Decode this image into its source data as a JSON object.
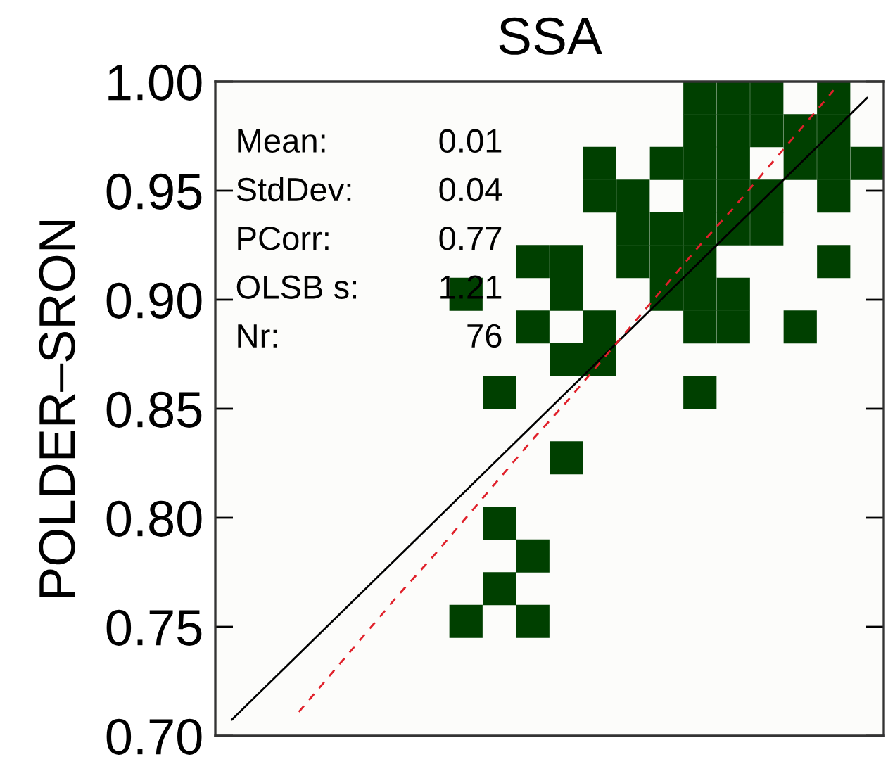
{
  "chart_data": {
    "type": "scatter",
    "title": "SSA",
    "ylabel": "POLDER–SRON",
    "categories": [
      null,
      null,
      null,
      null,
      null,
      null,
      null,
      null,
      null,
      null,
      null,
      null,
      null,
      null,
      null,
      null,
      null,
      null,
      null,
      null
    ],
    "ylim": [
      0.7,
      1.0
    ],
    "yticks": [
      {
        "value": 0.7,
        "label": "0.70"
      },
      {
        "value": 0.75,
        "label": "0.75"
      },
      {
        "value": 0.8,
        "label": "0.80"
      },
      {
        "value": 0.85,
        "label": "0.85"
      },
      {
        "value": 0.9,
        "label": "0.90"
      },
      {
        "value": 0.95,
        "label": "0.95"
      },
      {
        "value": 1.0,
        "label": "1.00"
      }
    ],
    "tick_labels": "y",
    "grid": false,
    "legend": false,
    "marker": "square",
    "annotations": [
      "Mean: 0.01",
      "StdDev: 0.04",
      "PCorr: 0.77",
      "OLSB s: 1.21",
      "Nr: 76"
    ],
    "series": [
      {
        "color": "#004000",
        "values": [
          null,
          null,
          null,
          null,
          null,
          null,
          null,
          null,
          null,
          null,
          null,
          null,
          null,
          null,
          0.9925,
          0.9925,
          0.9925,
          null,
          0.9925,
          null
        ]
      },
      {
        "color": "#004000",
        "values": [
          null,
          null,
          null,
          null,
          null,
          null,
          null,
          null,
          null,
          null,
          null,
          null,
          null,
          null,
          0.9775,
          0.9775,
          0.9775,
          0.9775,
          0.9775,
          null
        ]
      },
      {
        "color": "#004000",
        "values": [
          null,
          null,
          null,
          null,
          null,
          null,
          null,
          null,
          null,
          null,
          null,
          0.9625,
          null,
          0.9625,
          0.9625,
          0.9625,
          null,
          0.9625,
          0.9625,
          0.9625
        ]
      },
      {
        "color": "#004000",
        "values": [
          null,
          null,
          null,
          null,
          null,
          null,
          null,
          null,
          null,
          null,
          null,
          0.9475,
          0.9475,
          null,
          0.9475,
          0.9475,
          0.9475,
          null,
          0.9475,
          null
        ]
      },
      {
        "color": "#004000",
        "values": [
          null,
          null,
          null,
          null,
          null,
          null,
          null,
          null,
          null,
          null,
          null,
          null,
          0.9325,
          0.9325,
          0.9325,
          0.9325,
          0.9325,
          null,
          null,
          null
        ]
      },
      {
        "color": "#004000",
        "values": [
          null,
          null,
          null,
          null,
          null,
          null,
          null,
          null,
          null,
          0.9175,
          0.9175,
          null,
          0.9175,
          0.9175,
          0.9175,
          null,
          null,
          null,
          0.9175,
          null
        ]
      },
      {
        "color": "#004000",
        "values": [
          null,
          null,
          null,
          null,
          null,
          null,
          null,
          0.9025,
          null,
          null,
          0.9025,
          null,
          null,
          0.9025,
          0.9025,
          0.9025,
          null,
          null,
          null,
          null
        ]
      },
      {
        "color": "#004000",
        "values": [
          null,
          null,
          null,
          null,
          null,
          null,
          null,
          null,
          null,
          0.8875,
          null,
          0.8875,
          null,
          null,
          0.8875,
          0.8875,
          null,
          0.8875,
          null,
          null
        ]
      },
      {
        "color": "#004000",
        "values": [
          null,
          null,
          null,
          null,
          null,
          null,
          null,
          null,
          null,
          null,
          0.8725,
          0.8725,
          null,
          null,
          null,
          null,
          null,
          null,
          null,
          null
        ]
      },
      {
        "color": "#004000",
        "values": [
          null,
          null,
          null,
          null,
          null,
          null,
          null,
          null,
          0.8575,
          null,
          null,
          null,
          null,
          null,
          0.8575,
          null,
          null,
          null,
          null,
          null
        ]
      },
      {
        "color": "#004000",
        "values": [
          null,
          null,
          null,
          null,
          null,
          null,
          null,
          null,
          null,
          null,
          0.8275,
          null,
          null,
          null,
          null,
          null,
          null,
          null,
          null,
          null
        ]
      },
      {
        "color": "#004000",
        "values": [
          null,
          null,
          null,
          null,
          null,
          null,
          null,
          null,
          0.7975,
          null,
          null,
          null,
          null,
          null,
          null,
          null,
          null,
          null,
          null,
          null
        ]
      },
      {
        "color": "#004000",
        "values": [
          null,
          null,
          null,
          null,
          null,
          null,
          null,
          null,
          null,
          0.7825,
          null,
          null,
          null,
          null,
          null,
          null,
          null,
          null,
          null,
          null
        ]
      },
      {
        "color": "#004000",
        "values": [
          null,
          null,
          null,
          null,
          null,
          null,
          null,
          null,
          0.7675,
          null,
          null,
          null,
          null,
          null,
          null,
          null,
          null,
          null,
          null,
          null
        ]
      },
      {
        "color": "#004000",
        "values": [
          null,
          null,
          null,
          null,
          null,
          null,
          null,
          0.7525,
          null,
          0.7525,
          null,
          null,
          null,
          null,
          null,
          null,
          null,
          null,
          null,
          null
        ]
      },
      {
        "type": "line",
        "color": "#000000",
        "line_style": "solid",
        "marker": "none",
        "values": [
          0.7075,
          0.7225,
          0.7375,
          0.7525,
          0.7675,
          0.7825,
          0.7975,
          0.8125,
          0.8275,
          0.8425,
          0.8575,
          0.8725,
          0.8875,
          0.9025,
          0.9175,
          0.9325,
          0.9475,
          0.9625,
          0.9775,
          0.9925
        ]
      },
      {
        "type": "line",
        "color": "#e0202a",
        "line_style": "dashed",
        "marker": "none",
        "values": [
          null,
          null,
          0.711,
          0.729,
          0.747,
          0.765,
          0.782,
          0.8,
          0.818,
          0.836,
          0.853,
          0.871,
          0.889,
          0.907,
          0.925,
          0.942,
          0.96,
          0.978,
          0.996,
          null
        ]
      }
    ]
  }
}
